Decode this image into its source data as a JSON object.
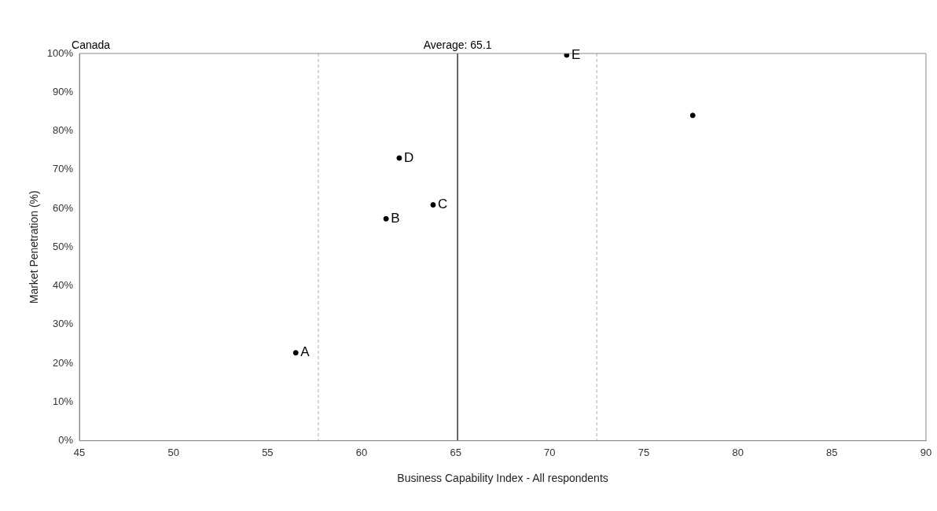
{
  "chart_data": {
    "type": "scatter",
    "title": "Canada",
    "xlabel": "Business Capability Index - All respondents",
    "ylabel": "Market Penetration (%)",
    "xlim": [
      45,
      90
    ],
    "xticks": [
      45,
      50,
      55,
      60,
      65,
      70,
      75,
      80,
      85,
      90
    ],
    "ylim": [
      0,
      100
    ],
    "yticks": [
      {
        "value": 0,
        "label": "0%"
      },
      {
        "value": 10,
        "label": "10%"
      },
      {
        "value": 20,
        "label": "20%"
      },
      {
        "value": 30,
        "label": "30%"
      },
      {
        "value": 40,
        "label": "40%"
      },
      {
        "value": 50,
        "label": "50%"
      },
      {
        "value": 60,
        "label": "60%"
      },
      {
        "value": 70,
        "label": "70%"
      },
      {
        "value": 80,
        "label": "80%"
      },
      {
        "value": 90,
        "label": "90%"
      },
      {
        "value": 100,
        "label": "100%"
      }
    ],
    "grid": false,
    "legend": false,
    "marker": "circle",
    "series": [
      {
        "name": "A",
        "color": "#000000",
        "x": [
          56.5
        ],
        "values": [
          22.7
        ]
      },
      {
        "name": "B",
        "color": "#000000",
        "x": [
          61.3
        ],
        "values": [
          57.3
        ]
      },
      {
        "name": "C",
        "color": "#000000",
        "x": [
          63.8
        ],
        "values": [
          60.9
        ]
      },
      {
        "name": "D",
        "color": "#000000",
        "x": [
          62.0
        ],
        "values": [
          73.0
        ]
      },
      {
        "name": "E",
        "color": "#000000",
        "x": [
          70.9
        ],
        "values": [
          99.6
        ]
      },
      {
        "color": "#000000",
        "x": [
          77.6
        ],
        "values": [
          84.0
        ]
      }
    ],
    "ref_lines": [
      {
        "axis": "x",
        "value": 57.7,
        "label": null,
        "color": "#bbbbbb",
        "line_style": "dashed"
      },
      {
        "axis": "x",
        "value": 65.1,
        "label": "Average: 65.1",
        "color": "#000000",
        "line_style": "solid"
      },
      {
        "axis": "x",
        "value": 72.5,
        "label": null,
        "color": "#bbbbbb",
        "line_style": "dashed"
      }
    ]
  }
}
